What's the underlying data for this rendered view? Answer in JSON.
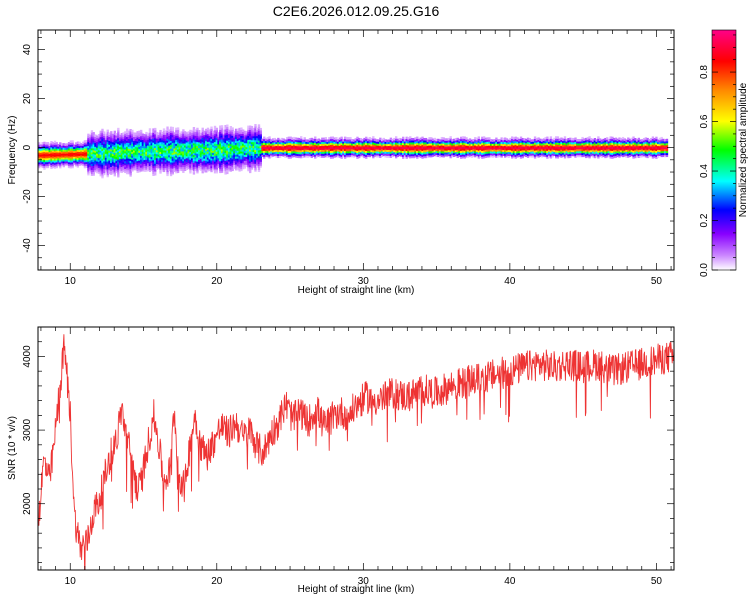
{
  "figure": {
    "title": "C2E6.2026.012.09.25.G16"
  },
  "chart_data": [
    {
      "type": "heatmap",
      "title": "C2E6.2026.012.09.25.G16",
      "xlabel": "Height of straight line (km)",
      "ylabel": "Frequency (Hz)",
      "xlim": [
        7.8,
        51.2
      ],
      "ylim": [
        -50,
        48
      ],
      "xticks": [
        10,
        20,
        30,
        40,
        50
      ],
      "yticks": [
        -40,
        -20,
        0,
        20,
        40
      ],
      "colorbar": {
        "label": "Normalized spectral amplitude",
        "range": [
          0,
          0.97
        ],
        "ticks": [
          0.0,
          0.2,
          0.4,
          0.6,
          0.8
        ],
        "tick_labels": [
          "0.0",
          "0.2",
          "0.4",
          "0.6",
          "0.8"
        ],
        "colors": [
          "#ffffff",
          "#8800ff",
          "#0000ff",
          "#00ffff",
          "#00ff00",
          "#ffff00",
          "#ff8800",
          "#ff0000",
          "#ff0088"
        ]
      },
      "ridge": {
        "center_hz": [
          {
            "x": 8.0,
            "y": -3.0
          },
          {
            "x": 11.0,
            "y": -2.5
          },
          {
            "x": 15.0,
            "y": -1.5
          },
          {
            "x": 20.0,
            "y": -1.0
          },
          {
            "x": 23.0,
            "y": 0.0
          },
          {
            "x": 51.0,
            "y": 0.0
          }
        ],
        "segments": [
          {
            "x0": 7.8,
            "x1": 11.2,
            "amplitude": 0.85,
            "halfwidth_hz": 2.5
          },
          {
            "x0": 11.2,
            "x1": 23.0,
            "amplitude": 0.45,
            "halfwidth_hz": 5.0
          },
          {
            "x0": 23.0,
            "x1": 50.8,
            "amplitude": 0.92,
            "halfwidth_hz": 2.0
          }
        ]
      }
    },
    {
      "type": "line",
      "xlabel": "Height of straight line (km)",
      "ylabel": "SNR (10 * v/v)",
      "xlim": [
        7.8,
        51.2
      ],
      "ylim": [
        1100,
        4400
      ],
      "xticks": [
        10,
        20,
        30,
        40,
        50
      ],
      "yticks": [
        2000,
        3000,
        4000
      ],
      "series": [
        {
          "name": "SNR",
          "color": "#ee3333",
          "anchors": [
            {
              "x": 7.8,
              "y": 1700
            },
            {
              "x": 8.2,
              "y": 2600
            },
            {
              "x": 8.6,
              "y": 2300
            },
            {
              "x": 9.0,
              "y": 3000
            },
            {
              "x": 9.3,
              "y": 3600
            },
            {
              "x": 9.6,
              "y": 4150
            },
            {
              "x": 10.0,
              "y": 3200
            },
            {
              "x": 10.3,
              "y": 1800
            },
            {
              "x": 10.7,
              "y": 1400
            },
            {
              "x": 11.2,
              "y": 1500
            },
            {
              "x": 11.6,
              "y": 1900
            },
            {
              "x": 12.0,
              "y": 2050
            },
            {
              "x": 12.4,
              "y": 2400
            },
            {
              "x": 12.8,
              "y": 2700
            },
            {
              "x": 13.2,
              "y": 2900
            },
            {
              "x": 13.5,
              "y": 3300
            },
            {
              "x": 13.8,
              "y": 2950
            },
            {
              "x": 14.2,
              "y": 2600
            },
            {
              "x": 14.6,
              "y": 2150
            },
            {
              "x": 14.9,
              "y": 2350
            },
            {
              "x": 15.3,
              "y": 2800
            },
            {
              "x": 15.7,
              "y": 3200
            },
            {
              "x": 16.0,
              "y": 2850
            },
            {
              "x": 16.4,
              "y": 2300
            },
            {
              "x": 16.8,
              "y": 2450
            },
            {
              "x": 17.1,
              "y": 3300
            },
            {
              "x": 17.4,
              "y": 2400
            },
            {
              "x": 17.8,
              "y": 2200
            },
            {
              "x": 18.1,
              "y": 2700
            },
            {
              "x": 18.5,
              "y": 3200
            },
            {
              "x": 18.9,
              "y": 2800
            },
            {
              "x": 19.3,
              "y": 2650
            },
            {
              "x": 19.8,
              "y": 2850
            },
            {
              "x": 20.3,
              "y": 3050
            },
            {
              "x": 20.8,
              "y": 2950
            },
            {
              "x": 21.3,
              "y": 3100
            },
            {
              "x": 21.8,
              "y": 2900
            },
            {
              "x": 22.3,
              "y": 3000
            },
            {
              "x": 22.8,
              "y": 2750
            },
            {
              "x": 23.2,
              "y": 2700
            },
            {
              "x": 23.7,
              "y": 2950
            },
            {
              "x": 24.2,
              "y": 3100
            },
            {
              "x": 24.7,
              "y": 3350
            },
            {
              "x": 25.2,
              "y": 3150
            },
            {
              "x": 25.7,
              "y": 3250
            },
            {
              "x": 26.2,
              "y": 3100
            },
            {
              "x": 26.8,
              "y": 3300
            },
            {
              "x": 27.3,
              "y": 3050
            },
            {
              "x": 27.8,
              "y": 3150
            },
            {
              "x": 28.4,
              "y": 3250
            },
            {
              "x": 29.0,
              "y": 3200
            },
            {
              "x": 29.6,
              "y": 3350
            },
            {
              "x": 30.2,
              "y": 3450
            },
            {
              "x": 31.0,
              "y": 3400
            },
            {
              "x": 32.0,
              "y": 3500
            },
            {
              "x": 33.0,
              "y": 3450
            },
            {
              "x": 34.0,
              "y": 3550
            },
            {
              "x": 35.0,
              "y": 3500
            },
            {
              "x": 36.0,
              "y": 3600
            },
            {
              "x": 37.0,
              "y": 3650
            },
            {
              "x": 38.0,
              "y": 3700
            },
            {
              "x": 39.0,
              "y": 3750
            },
            {
              "x": 40.0,
              "y": 3800
            },
            {
              "x": 41.0,
              "y": 3850
            },
            {
              "x": 42.0,
              "y": 3900
            },
            {
              "x": 43.0,
              "y": 3850
            },
            {
              "x": 44.0,
              "y": 3900
            },
            {
              "x": 45.0,
              "y": 3850
            },
            {
              "x": 46.0,
              "y": 3900
            },
            {
              "x": 47.0,
              "y": 3800
            },
            {
              "x": 48.0,
              "y": 3850
            },
            {
              "x": 49.0,
              "y": 3900
            },
            {
              "x": 50.0,
              "y": 3950
            },
            {
              "x": 51.2,
              "y": 4000
            }
          ],
          "noise_amplitude": 220
        }
      ]
    }
  ]
}
